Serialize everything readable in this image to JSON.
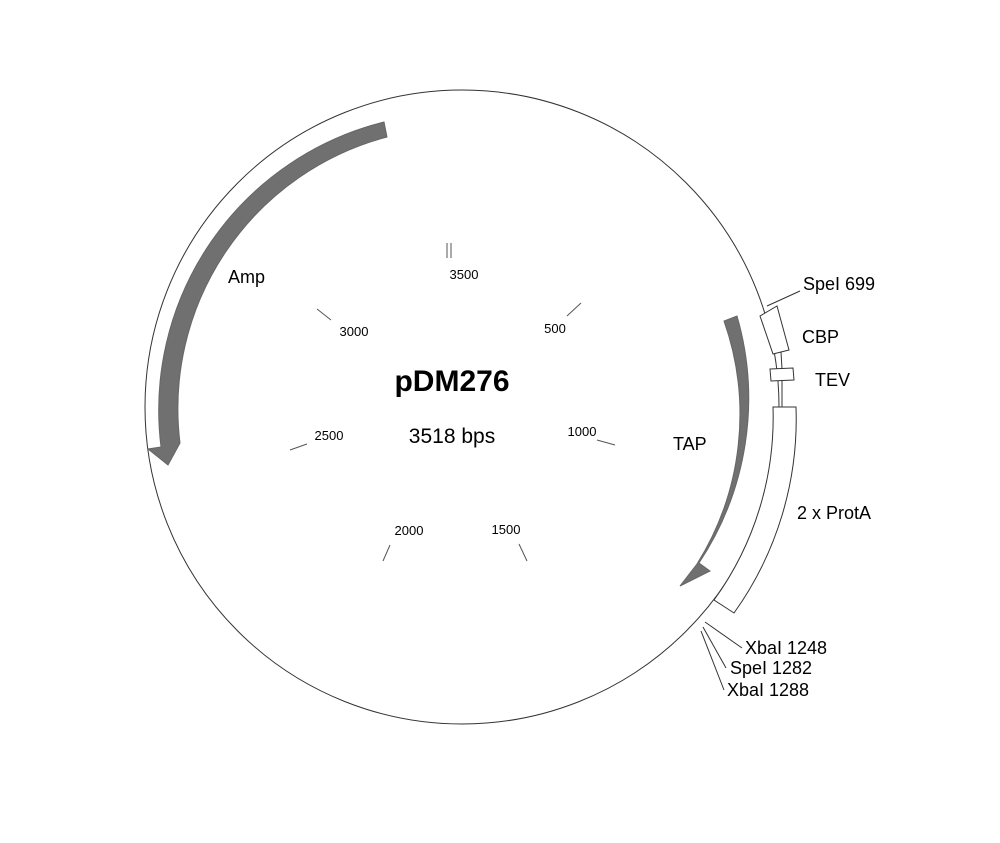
{
  "plasmid": {
    "name": "pDM276",
    "size_label": "3518 bps",
    "length_bp": 3518
  },
  "colors": {
    "backbone": "#333333",
    "arrow_fill": "#707070",
    "box_fill": "#ffffff",
    "text": "#000000"
  },
  "ticks": [
    {
      "position": 500,
      "label": "500"
    },
    {
      "position": 1000,
      "label": "1000"
    },
    {
      "position": 1500,
      "label": "1500"
    },
    {
      "position": 2000,
      "label": "2000"
    },
    {
      "position": 2500,
      "label": "2500"
    },
    {
      "position": 3000,
      "label": "3000"
    },
    {
      "position": 3500,
      "label": "3500"
    }
  ],
  "features": [
    {
      "name": "Amp",
      "kind": "arrow",
      "direction": "counterclockwise"
    },
    {
      "name": "TAP",
      "kind": "arrow",
      "direction": "clockwise"
    },
    {
      "name": "CBP",
      "kind": "box"
    },
    {
      "name": "TEV",
      "kind": "box"
    },
    {
      "name": "2 x ProtA",
      "kind": "box"
    }
  ],
  "restriction_sites": [
    {
      "enzyme": "SpeI",
      "position": 699,
      "label": "SpeI 699"
    },
    {
      "enzyme": "XbaI",
      "position": 1248,
      "label": "XbaI 1248"
    },
    {
      "enzyme": "SpeI",
      "position": 1282,
      "label": "SpeI 1282"
    },
    {
      "enzyme": "XbaI",
      "position": 1288,
      "label": "XbaI 1288"
    }
  ]
}
